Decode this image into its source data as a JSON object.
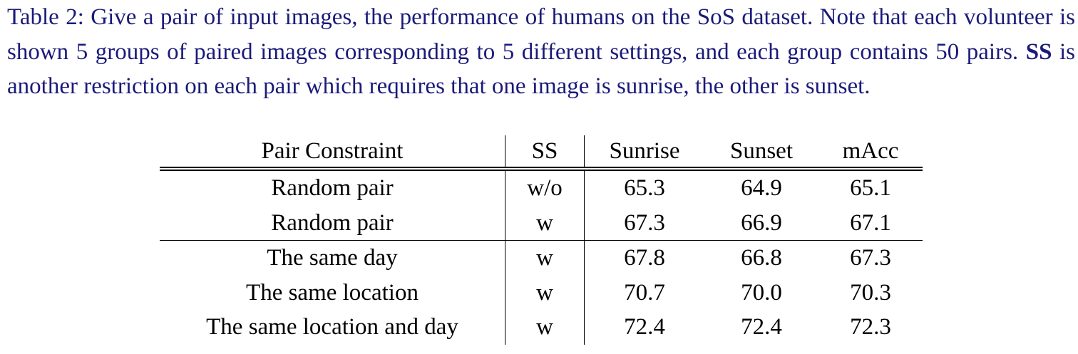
{
  "caption": {
    "label": "Table 2:",
    "text_before_bold": " Give a pair of input images, the performance of humans on the SoS dataset. Note that each volunteer is shown 5 groups of paired images corresponding to 5 different settings, and each group contains 50 pairs. ",
    "bold": "SS",
    "text_after_bold": " is another restriction on each pair which requires that one image is sunrise, the other is sunset."
  },
  "chart_data": {
    "type": "table",
    "columns": [
      "Pair Constraint",
      "SS",
      "Sunrise",
      "Sunset",
      "mAcc"
    ],
    "rows": [
      {
        "constraint": "Random pair",
        "ss": "w/o",
        "sunrise": "65.3",
        "sunset": "64.9",
        "macc": "65.1"
      },
      {
        "constraint": "Random pair",
        "ss": "w",
        "sunrise": "67.3",
        "sunset": "66.9",
        "macc": "67.1"
      },
      {
        "constraint": "The same day",
        "ss": "w",
        "sunrise": "67.8",
        "sunset": "66.8",
        "macc": "67.3"
      },
      {
        "constraint": "The same location",
        "ss": "w",
        "sunrise": "70.7",
        "sunset": "70.0",
        "macc": "70.3"
      },
      {
        "constraint": "The same location and day",
        "ss": "w",
        "sunrise": "72.4",
        "sunset": "72.4",
        "macc": "72.3"
      }
    ]
  }
}
